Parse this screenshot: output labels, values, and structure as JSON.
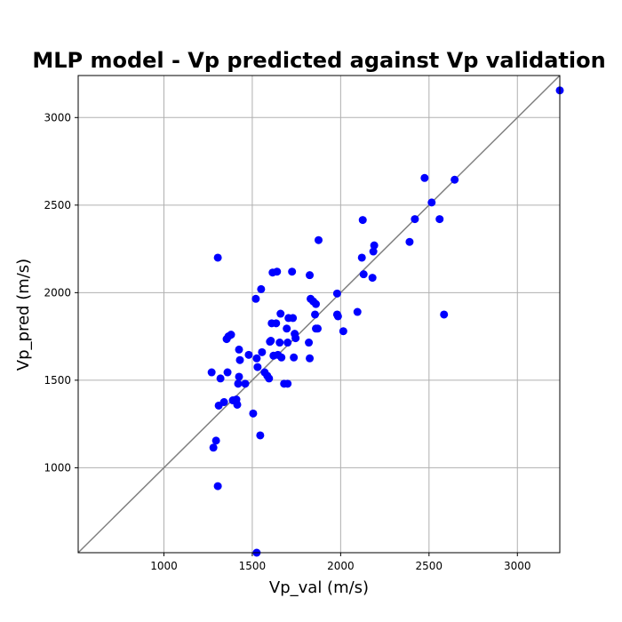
{
  "chart_data": {
    "type": "scatter",
    "title": "MLP model - Vp predicted against Vp validation",
    "xlabel": "Vp_val (m/s)",
    "ylabel": "Vp_pred (m/s)",
    "xlim": [
      515,
      3240
    ],
    "ylim": [
      515,
      3240
    ],
    "xticks": [
      1000,
      1500,
      2000,
      2500,
      3000
    ],
    "yticks": [
      1000,
      1500,
      2000,
      2500,
      3000
    ],
    "grid": true,
    "reference_line": "y = x",
    "colors": {
      "points": "#0000ff",
      "reference_line": "#808080",
      "grid": "#b0b0b0"
    },
    "series": [
      {
        "points": [
          [
            1270,
            1545
          ],
          [
            1280,
            1115
          ],
          [
            1295,
            1155
          ],
          [
            1305,
            2200
          ],
          [
            1305,
            895
          ],
          [
            1310,
            1355
          ],
          [
            1320,
            1510
          ],
          [
            1340,
            1375
          ],
          [
            1355,
            1735
          ],
          [
            1360,
            1545
          ],
          [
            1365,
            1750
          ],
          [
            1380,
            1760
          ],
          [
            1390,
            1385
          ],
          [
            1410,
            1390
          ],
          [
            1415,
            1360
          ],
          [
            1420,
            1480
          ],
          [
            1425,
            1675
          ],
          [
            1425,
            1520
          ],
          [
            1430,
            1615
          ],
          [
            1460,
            1480
          ],
          [
            1480,
            1645
          ],
          [
            1505,
            1310
          ],
          [
            1520,
            1965
          ],
          [
            1525,
            1625
          ],
          [
            1530,
            1575
          ],
          [
            1525,
            515
          ],
          [
            1545,
            1185
          ],
          [
            1550,
            2020
          ],
          [
            1555,
            1660
          ],
          [
            1570,
            1545
          ],
          [
            1585,
            1525
          ],
          [
            1595,
            1510
          ],
          [
            1600,
            1720
          ],
          [
            1605,
            1725
          ],
          [
            1610,
            1825
          ],
          [
            1615,
            2115
          ],
          [
            1620,
            1640
          ],
          [
            1635,
            1825
          ],
          [
            1640,
            2120
          ],
          [
            1645,
            1645
          ],
          [
            1655,
            1715
          ],
          [
            1660,
            1880
          ],
          [
            1665,
            1630
          ],
          [
            1680,
            1480
          ],
          [
            1695,
            1795
          ],
          [
            1700,
            1480
          ],
          [
            1700,
            1715
          ],
          [
            1705,
            1855
          ],
          [
            1725,
            2120
          ],
          [
            1730,
            1855
          ],
          [
            1735,
            1630
          ],
          [
            1740,
            1765
          ],
          [
            1745,
            1740
          ],
          [
            1820,
            1715
          ],
          [
            1825,
            1625
          ],
          [
            1825,
            2100
          ],
          [
            1830,
            1965
          ],
          [
            1845,
            1950
          ],
          [
            1855,
            1875
          ],
          [
            1860,
            1795
          ],
          [
            1860,
            1935
          ],
          [
            1870,
            1795
          ],
          [
            1875,
            2300
          ],
          [
            1980,
            1875
          ],
          [
            1980,
            1995
          ],
          [
            1985,
            1865
          ],
          [
            2015,
            1780
          ],
          [
            2095,
            1890
          ],
          [
            2120,
            2200
          ],
          [
            2125,
            2415
          ],
          [
            2130,
            2105
          ],
          [
            2180,
            2085
          ],
          [
            2185,
            2235
          ],
          [
            2190,
            2270
          ],
          [
            2390,
            2290
          ],
          [
            2420,
            2420
          ],
          [
            2475,
            2655
          ],
          [
            2515,
            2515
          ],
          [
            2560,
            2420
          ],
          [
            2585,
            1875
          ],
          [
            2645,
            2645
          ],
          [
            3240,
            3155
          ]
        ]
      }
    ]
  }
}
